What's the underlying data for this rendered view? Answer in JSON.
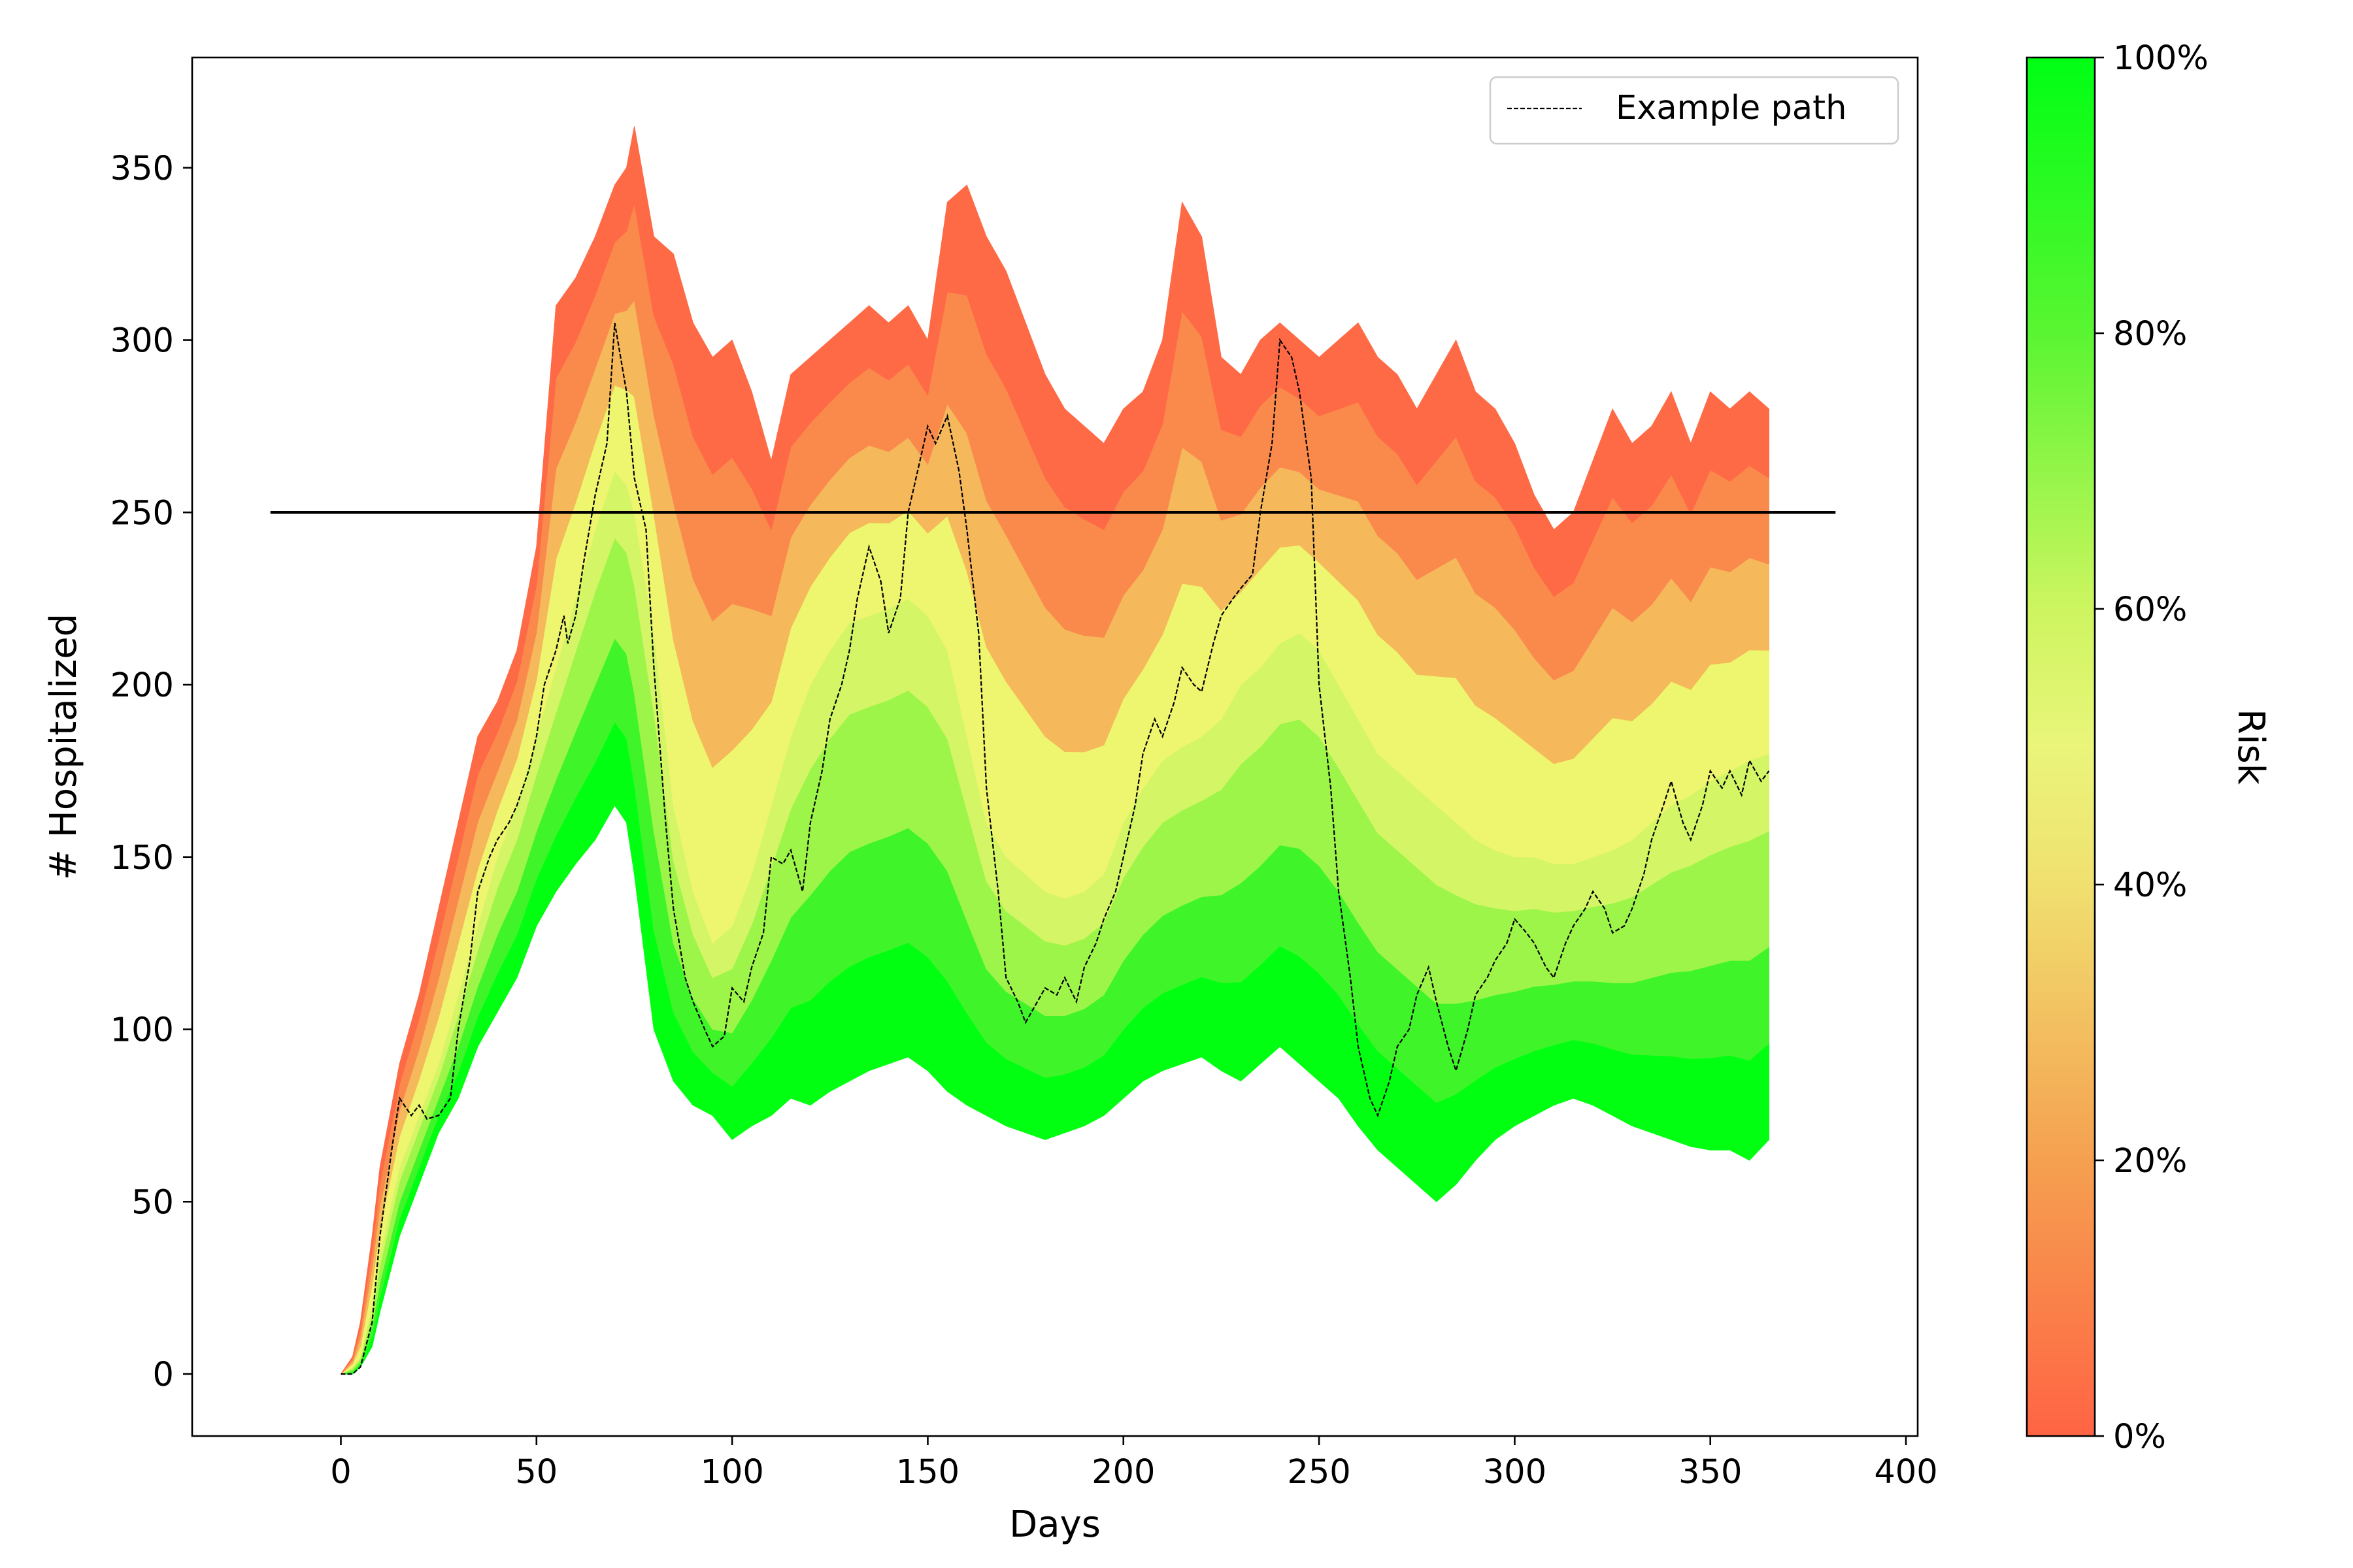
{
  "chart_data": {
    "type": "area",
    "xlabel": "Days",
    "ylabel": "# Hospitalized",
    "xlim": [
      -38,
      403
    ],
    "ylim": [
      -18,
      382
    ],
    "x_ticks": [
      0,
      50,
      100,
      150,
      200,
      250,
      300,
      350,
      400
    ],
    "y_ticks": [
      0,
      50,
      100,
      150,
      200,
      250,
      300,
      350
    ],
    "grid": false,
    "legend": {
      "position": "top-right",
      "entries": [
        "Example path"
      ]
    },
    "threshold": {
      "value": 250,
      "x_range": [
        -18,
        382
      ],
      "color": "#000000"
    },
    "band": {
      "description_colors": {
        "low_risk_edge": "#00ff10",
        "mid": "#eef56e",
        "high_risk_edge": "#ff6a46"
      },
      "x": [
        0,
        3,
        5,
        8,
        10,
        15,
        20,
        25,
        30,
        35,
        40,
        45,
        50,
        55,
        60,
        65,
        70,
        73,
        75,
        80,
        85,
        90,
        95,
        100,
        105,
        110,
        115,
        120,
        125,
        130,
        135,
        140,
        145,
        150,
        155,
        160,
        165,
        170,
        175,
        180,
        185,
        190,
        195,
        200,
        205,
        210,
        215,
        220,
        225,
        230,
        235,
        240,
        245,
        250,
        255,
        260,
        265,
        270,
        275,
        280,
        285,
        290,
        295,
        300,
        305,
        310,
        315,
        320,
        325,
        330,
        335,
        340,
        345,
        350,
        355,
        360,
        365
      ],
      "upper": [
        0,
        5,
        15,
        40,
        60,
        90,
        110,
        135,
        160,
        185,
        195,
        210,
        240,
        310,
        318,
        330,
        345,
        350,
        362,
        330,
        325,
        305,
        295,
        300,
        285,
        265,
        290,
        295,
        300,
        305,
        310,
        305,
        310,
        300,
        340,
        345,
        330,
        320,
        305,
        290,
        280,
        275,
        270,
        280,
        285,
        300,
        340,
        330,
        295,
        290,
        300,
        305,
        300,
        295,
        300,
        305,
        295,
        290,
        280,
        290,
        300,
        285,
        280,
        270,
        255,
        245,
        250,
        265,
        280,
        270,
        275,
        285,
        270,
        285,
        280,
        285,
        280
      ],
      "mid": [
        0,
        2,
        5,
        20,
        35,
        60,
        75,
        90,
        110,
        130,
        150,
        165,
        185,
        205,
        225,
        245,
        262,
        258,
        250,
        215,
        165,
        140,
        125,
        130,
        145,
        165,
        185,
        200,
        210,
        218,
        220,
        222,
        225,
        220,
        210,
        185,
        160,
        150,
        145,
        140,
        138,
        140,
        145,
        160,
        170,
        178,
        182,
        185,
        190,
        200,
        205,
        212,
        215,
        210,
        200,
        190,
        180,
        175,
        170,
        165,
        160,
        155,
        152,
        150,
        150,
        148,
        148,
        150,
        152,
        155,
        160,
        165,
        168,
        172,
        175,
        178,
        180
      ],
      "lower": [
        0,
        0,
        2,
        8,
        18,
        40,
        55,
        70,
        80,
        95,
        105,
        115,
        130,
        140,
        148,
        155,
        165,
        160,
        145,
        100,
        85,
        78,
        75,
        68,
        72,
        75,
        80,
        78,
        82,
        85,
        88,
        90,
        92,
        88,
        82,
        78,
        75,
        72,
        70,
        68,
        70,
        72,
        75,
        80,
        85,
        88,
        90,
        92,
        88,
        85,
        90,
        95,
        90,
        85,
        80,
        72,
        65,
        60,
        55,
        50,
        55,
        62,
        68,
        72,
        75,
        78,
        80,
        78,
        75,
        72,
        70,
        68,
        66,
        65,
        65,
        62,
        68
      ]
    },
    "series": [
      {
        "name": "Example path",
        "style": "dashed",
        "color": "#000000",
        "x": [
          0,
          3,
          5,
          8,
          10,
          13,
          15,
          18,
          20,
          22,
          25,
          28,
          30,
          33,
          35,
          38,
          40,
          43,
          45,
          48,
          50,
          52,
          55,
          57,
          58,
          60,
          62,
          65,
          68,
          70,
          73,
          75,
          78,
          80,
          83,
          85,
          88,
          90,
          93,
          95,
          98,
          100,
          103,
          105,
          108,
          110,
          113,
          115,
          118,
          120,
          123,
          125,
          128,
          130,
          132,
          135,
          138,
          140,
          143,
          145,
          148,
          150,
          152,
          155,
          158,
          160,
          163,
          165,
          168,
          170,
          173,
          175,
          178,
          180,
          183,
          185,
          188,
          190,
          193,
          195,
          198,
          200,
          203,
          205,
          208,
          210,
          213,
          215,
          218,
          220,
          223,
          225,
          228,
          230,
          233,
          235,
          238,
          240,
          243,
          245,
          248,
          250,
          253,
          255,
          258,
          260,
          263,
          265,
          268,
          270,
          273,
          275,
          278,
          280,
          283,
          285,
          288,
          290,
          293,
          295,
          298,
          300,
          303,
          305,
          308,
          310,
          313,
          315,
          318,
          320,
          323,
          325,
          328,
          330,
          333,
          335,
          338,
          340,
          343,
          345,
          348,
          350,
          353,
          355,
          358,
          360,
          363,
          365
        ],
        "y": [
          0,
          0,
          2,
          15,
          40,
          65,
          80,
          75,
          78,
          74,
          75,
          80,
          100,
          120,
          140,
          150,
          155,
          160,
          165,
          175,
          185,
          200,
          210,
          220,
          212,
          220,
          235,
          255,
          270,
          305,
          285,
          260,
          245,
          205,
          160,
          135,
          115,
          108,
          100,
          95,
          98,
          112,
          108,
          118,
          128,
          150,
          148,
          152,
          140,
          160,
          175,
          190,
          200,
          210,
          225,
          240,
          230,
          215,
          225,
          250,
          265,
          275,
          270,
          278,
          262,
          245,
          215,
          170,
          140,
          115,
          108,
          102,
          108,
          112,
          110,
          115,
          108,
          118,
          125,
          132,
          140,
          150,
          165,
          180,
          190,
          185,
          195,
          205,
          200,
          198,
          212,
          220,
          225,
          228,
          232,
          250,
          270,
          300,
          295,
          285,
          260,
          200,
          170,
          140,
          115,
          95,
          80,
          75,
          85,
          95,
          100,
          110,
          118,
          108,
          95,
          88,
          100,
          110,
          115,
          120,
          125,
          132,
          128,
          125,
          118,
          115,
          125,
          130,
          135,
          140,
          135,
          128,
          130,
          135,
          145,
          155,
          165,
          172,
          160,
          155,
          165,
          175,
          170,
          175,
          168,
          178,
          172,
          175
        ]
      }
    ]
  },
  "colorbar": {
    "label": "Risk",
    "tick_values": [
      0,
      20,
      40,
      60,
      80,
      100
    ],
    "tick_labels": [
      "0%",
      "20%",
      "40%",
      "60%",
      "80%",
      "100%"
    ],
    "colors": {
      "bottom": "#ff6444",
      "p20": "#f5a050",
      "p40": "#f0e070",
      "p50": "#eaf57a",
      "p60": "#cdf560",
      "p80": "#5af532",
      "top": "#00ff14"
    }
  }
}
